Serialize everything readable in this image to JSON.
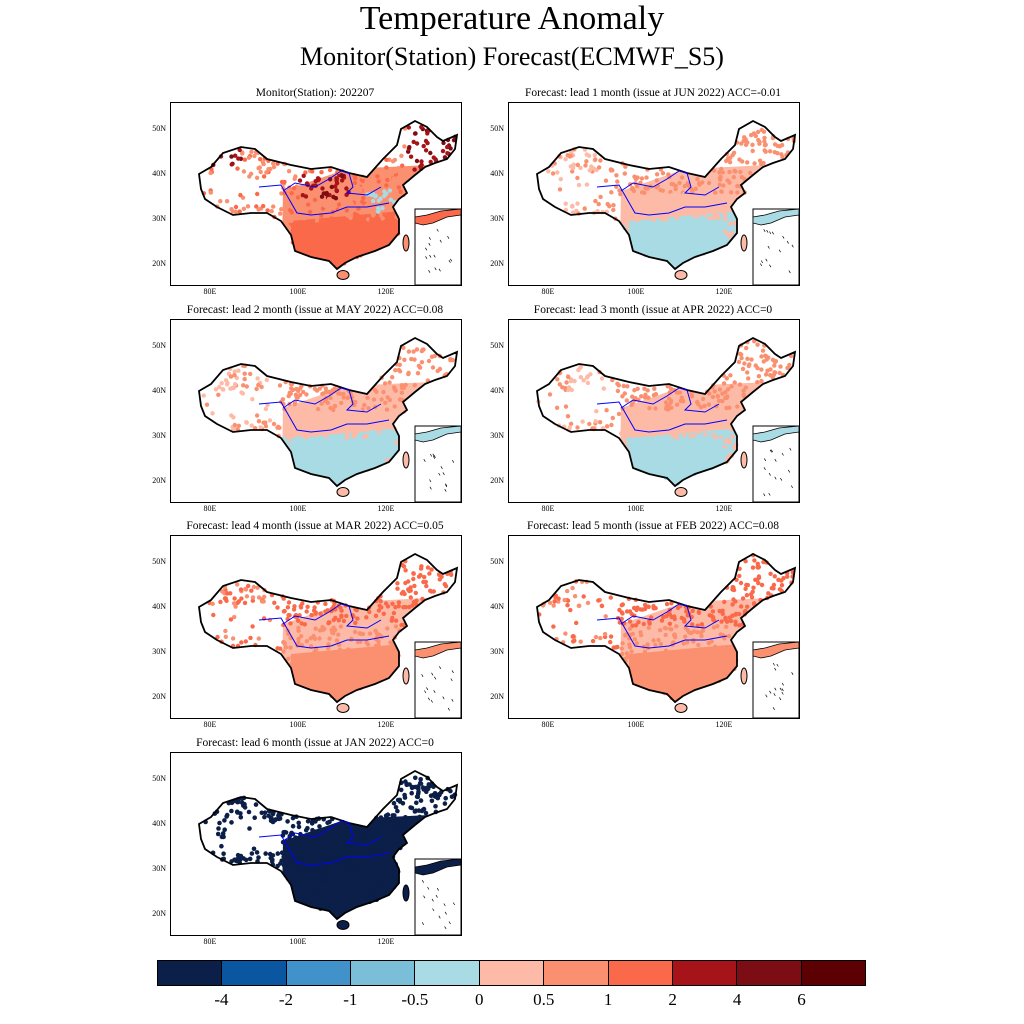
{
  "header": {
    "title": "Temperature Anomaly",
    "subtitle": "Monitor(Station)   Forecast(ECMWF_S5)"
  },
  "axes": {
    "lat_labels": [
      "50N",
      "40N",
      "30N",
      "20N"
    ],
    "lon_labels": [
      "80E",
      "100E",
      "120E"
    ]
  },
  "panels": [
    {
      "title": "Monitor(Station): 202207",
      "pattern": "monitor"
    },
    {
      "title": "Forecast: lead 1 month (issue at JUN 2022) ACC=-0.01",
      "pattern": "south-cool"
    },
    {
      "title": "Forecast: lead 2 month (issue at MAY 2022) ACC=0.08",
      "pattern": "south-cool"
    },
    {
      "title": "Forecast: lead 3 month (issue at APR 2022) ACC=0",
      "pattern": "south-cool"
    },
    {
      "title": "Forecast: lead 4 month (issue at MAR 2022) ACC=0.05",
      "pattern": "warm"
    },
    {
      "title": "Forecast: lead 5 month (issue at FEB 2022) ACC=0.08",
      "pattern": "warm"
    },
    {
      "title": "Forecast: lead 6 month (issue at JAN 2022) ACC=0",
      "pattern": "cold"
    }
  ],
  "colorbar": {
    "colors": [
      "#0b1f48",
      "#0b56a0",
      "#4191cb",
      "#7abed8",
      "#a8dbe3",
      "#fdbba7",
      "#fb9070",
      "#f9694a",
      "#a61419",
      "#7c0d14",
      "#5d0004"
    ],
    "labels": [
      "-4",
      "-2",
      "-1",
      "-0.5",
      "0",
      "0.5",
      "1",
      "2",
      "4",
      "6"
    ]
  },
  "colors": {
    "river": "#0000ff",
    "border": "#000000"
  }
}
